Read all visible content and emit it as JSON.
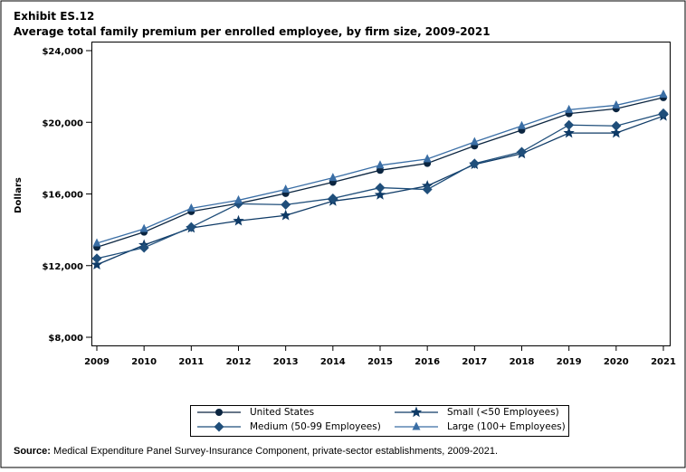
{
  "exhibit": "Exhibit ES.12",
  "title": "Average total family premium per enrolled employee, by firm size, 2009-2021",
  "source_label": "Source:",
  "source_text": " Medical Expenditure Panel Survey-Insurance Component, private-sector establishments, 2009-2021.",
  "chart_data": {
    "type": "line",
    "title": "Average total family premium per enrolled employee, by firm size, 2009-2021",
    "xlabel": "",
    "ylabel": "Dollars",
    "x": [
      2009,
      2010,
      2011,
      2012,
      2013,
      2014,
      2015,
      2016,
      2017,
      2018,
      2019,
      2020,
      2021
    ],
    "x_tick_labels": [
      "2009",
      "2010",
      "2011",
      "2012",
      "2013",
      "2014",
      "2015",
      "2016",
      "2017",
      "2018",
      "2019",
      "2020",
      "2021"
    ],
    "ylim": [
      8000,
      24000
    ],
    "y_ticks": [
      8000,
      12000,
      16000,
      20000,
      24000
    ],
    "y_tick_labels": [
      "$8,000",
      "$12,000",
      "$16,000",
      "$20,000",
      "$24,000"
    ],
    "grid": false,
    "legend_placement": "bottom",
    "series": [
      {
        "name": "United States",
        "marker": "circle",
        "color": "#0b2540",
        "values": [
          13027,
          13871,
          15022,
          15473,
          16029,
          16655,
          17322,
          17710,
          18687,
          19565,
          20486,
          20758,
          21381
        ]
      },
      {
        "name": "Small (<50 Employees)",
        "marker": "star",
        "color": "#0e3a66",
        "values": [
          12050,
          13150,
          14100,
          14500,
          14800,
          15600,
          15950,
          16450,
          17650,
          18250,
          19400,
          19400,
          20350
        ]
      },
      {
        "name": "Medium (50-99 Employees)",
        "marker": "diamond",
        "color": "#1f4e7a",
        "values": [
          12400,
          13000,
          14150,
          15450,
          15400,
          15750,
          16350,
          16250,
          17700,
          18350,
          19850,
          19800,
          20500
        ]
      },
      {
        "name": "Large (100+ Employees)",
        "marker": "triangle",
        "color": "#3a6ea5",
        "values": [
          13250,
          14050,
          15200,
          15650,
          16250,
          16900,
          17600,
          17950,
          18900,
          19800,
          20700,
          20950,
          21550
        ]
      }
    ]
  }
}
